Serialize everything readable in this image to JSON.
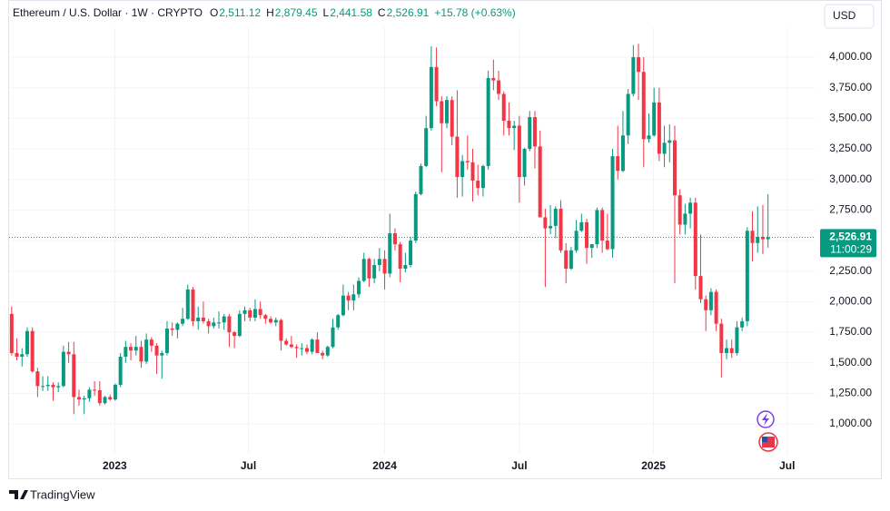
{
  "chart_data": {
    "type": "candlestick",
    "title": "Ethereum / U.S. Dollar · 1W · CRYPTO",
    "ohlc_legend": [
      {
        "key": "O",
        "value": "2,511.12"
      },
      {
        "key": "H",
        "value": "2,879.45"
      },
      {
        "key": "L",
        "value": "2,441.58"
      },
      {
        "key": "C",
        "value": "2,526.91"
      }
    ],
    "change": "+15.78 (+0.63%)",
    "currency": "USD",
    "brand": "TradingView",
    "last_price": {
      "value": 2526.91,
      "label": "2,526.91"
    },
    "countdown": "11:00:29",
    "up_color": "#089981",
    "down_color": "#f23645",
    "grid": true,
    "xlim": [
      -0.5,
      155
    ],
    "xticks": [
      {
        "value": 19.9,
        "label": "2023"
      },
      {
        "value": 45.7,
        "label": "Jul"
      },
      {
        "value": 72,
        "label": "2024"
      },
      {
        "value": 98,
        "label": "Jul"
      },
      {
        "value": 123.9,
        "label": "2025"
      },
      {
        "value": 149.7,
        "label": "Jul"
      }
    ],
    "ylim": [
      555,
      4468
    ],
    "yticks": [
      {
        "value": 1000,
        "label": "1,000.00"
      },
      {
        "value": 1250,
        "label": "1,250.00"
      },
      {
        "value": 1500,
        "label": "1,500.00"
      },
      {
        "value": 1750,
        "label": "1,750.00"
      },
      {
        "value": 2000,
        "label": "2,000.00"
      },
      {
        "value": 2250,
        "label": "2,250.00"
      },
      {
        "value": 2500,
        "label": "2,500.00"
      },
      {
        "value": 2750,
        "label": "2,750.00"
      },
      {
        "value": 3000,
        "label": "3,000.00"
      },
      {
        "value": 3250,
        "label": "3,250.00"
      },
      {
        "value": 3500,
        "label": "3,500.00"
      },
      {
        "value": 3750,
        "label": "3,750.00"
      },
      {
        "value": 4000,
        "label": "4,000.00"
      }
    ],
    "candles": [
      [
        1900,
        1960,
        1560,
        1580
      ],
      [
        1580,
        1700,
        1520,
        1550
      ],
      [
        1550,
        1620,
        1470,
        1570
      ],
      [
        1570,
        1790,
        1550,
        1760
      ],
      [
        1760,
        1790,
        1420,
        1430
      ],
      [
        1430,
        1460,
        1220,
        1310
      ],
      [
        1310,
        1390,
        1270,
        1310
      ],
      [
        1310,
        1390,
        1270,
        1320
      ],
      [
        1320,
        1340,
        1190,
        1300
      ],
      [
        1300,
        1340,
        1260,
        1310
      ],
      [
        1310,
        1640,
        1300,
        1590
      ],
      [
        1590,
        1670,
        1500,
        1570
      ],
      [
        1570,
        1670,
        1080,
        1220
      ],
      [
        1220,
        1280,
        1150,
        1200
      ],
      [
        1200,
        1230,
        1080,
        1210
      ],
      [
        1210,
        1300,
        1180,
        1280
      ],
      [
        1280,
        1350,
        1230,
        1275
      ],
      [
        1275,
        1350,
        1150,
        1170
      ],
      [
        1170,
        1230,
        1160,
        1220
      ],
      [
        1220,
        1240,
        1190,
        1200
      ],
      [
        1200,
        1330,
        1190,
        1320
      ],
      [
        1320,
        1580,
        1300,
        1550
      ],
      [
        1550,
        1680,
        1500,
        1630
      ],
      [
        1630,
        1660,
        1520,
        1600
      ],
      [
        1600,
        1720,
        1560,
        1630
      ],
      [
        1630,
        1680,
        1460,
        1510
      ],
      [
        1510,
        1740,
        1490,
        1690
      ],
      [
        1690,
        1710,
        1590,
        1640
      ],
      [
        1640,
        1660,
        1410,
        1560
      ],
      [
        1560,
        1600,
        1370,
        1580
      ],
      [
        1580,
        1840,
        1560,
        1780
      ],
      [
        1780,
        1830,
        1720,
        1770
      ],
      [
        1770,
        1830,
        1700,
        1820
      ],
      [
        1820,
        1950,
        1800,
        1860
      ],
      [
        1860,
        2140,
        1850,
        2100
      ],
      [
        2100,
        2120,
        1800,
        1840
      ],
      [
        1840,
        1960,
        1770,
        1870
      ],
      [
        1870,
        2000,
        1820,
        1840
      ],
      [
        1840,
        1860,
        1740,
        1800
      ],
      [
        1800,
        1870,
        1780,
        1830
      ],
      [
        1830,
        1920,
        1780,
        1830
      ],
      [
        1830,
        1900,
        1770,
        1880
      ],
      [
        1880,
        1900,
        1630,
        1750
      ],
      [
        1750,
        1760,
        1620,
        1720
      ],
      [
        1720,
        1930,
        1710,
        1900
      ],
      [
        1900,
        1960,
        1840,
        1930
      ],
      [
        1930,
        1950,
        1840,
        1870
      ],
      [
        1870,
        2020,
        1840,
        1940
      ],
      [
        1940,
        2000,
        1860,
        1890
      ],
      [
        1890,
        1900,
        1820,
        1860
      ],
      [
        1860,
        1880,
        1820,
        1830
      ],
      [
        1830,
        1870,
        1800,
        1850
      ],
      [
        1850,
        1860,
        1600,
        1680
      ],
      [
        1680,
        1700,
        1640,
        1650
      ],
      [
        1650,
        1720,
        1620,
        1630
      ],
      [
        1630,
        1650,
        1540,
        1620
      ],
      [
        1620,
        1660,
        1560,
        1620
      ],
      [
        1620,
        1650,
        1570,
        1590
      ],
      [
        1590,
        1700,
        1570,
        1690
      ],
      [
        1690,
        1750,
        1580,
        1580
      ],
      [
        1580,
        1600,
        1530,
        1560
      ],
      [
        1560,
        1640,
        1550,
        1630
      ],
      [
        1630,
        1860,
        1620,
        1790
      ],
      [
        1790,
        1900,
        1770,
        1890
      ],
      [
        1890,
        2140,
        1880,
        2050
      ],
      [
        2050,
        2080,
        1930,
        2010
      ],
      [
        2010,
        2140,
        1930,
        2060
      ],
      [
        2060,
        2200,
        2030,
        2170
      ],
      [
        2170,
        2400,
        2160,
        2350
      ],
      [
        2350,
        2360,
        2120,
        2190
      ],
      [
        2190,
        2350,
        2150,
        2300
      ],
      [
        2300,
        2440,
        2250,
        2350
      ],
      [
        2350,
        2420,
        2100,
        2230
      ],
      [
        2230,
        2720,
        2200,
        2560
      ],
      [
        2560,
        2600,
        2420,
        2470
      ],
      [
        2470,
        2490,
        2160,
        2270
      ],
      [
        2270,
        2400,
        2240,
        2300
      ],
      [
        2300,
        2530,
        2280,
        2500
      ],
      [
        2500,
        2900,
        2480,
        2880
      ],
      [
        2880,
        3130,
        2870,
        3110
      ],
      [
        3110,
        3520,
        3100,
        3420
      ],
      [
        3420,
        4090,
        3400,
        3920
      ],
      [
        3920,
        4080,
        3600,
        3640
      ],
      [
        3640,
        3680,
        3060,
        3460
      ],
      [
        3460,
        3680,
        3420,
        3650
      ],
      [
        3650,
        3680,
        3280,
        3350
      ],
      [
        3350,
        3730,
        2850,
        3020
      ],
      [
        3020,
        3200,
        2860,
        3150
      ],
      [
        3150,
        3360,
        3080,
        3140
      ],
      [
        3140,
        3250,
        2820,
        2990
      ],
      [
        2990,
        3120,
        2870,
        2930
      ],
      [
        2930,
        3120,
        2860,
        3110
      ],
      [
        3110,
        3890,
        3080,
        3830
      ],
      [
        3830,
        3980,
        3730,
        3810
      ],
      [
        3810,
        3890,
        3650,
        3700
      ],
      [
        3700,
        3720,
        3360,
        3480
      ],
      [
        3480,
        3630,
        3360,
        3420
      ],
      [
        3420,
        3480,
        3240,
        3440
      ],
      [
        3440,
        3520,
        2810,
        3020
      ],
      [
        3020,
        3260,
        2950,
        3250
      ],
      [
        3250,
        3560,
        3230,
        3510
      ],
      [
        3510,
        3560,
        3090,
        3270
      ],
      [
        3270,
        3400,
        2690,
        2690
      ],
      [
        2690,
        2760,
        2120,
        2600
      ],
      [
        2600,
        2790,
        2550,
        2620
      ],
      [
        2620,
        2780,
        2520,
        2760
      ],
      [
        2760,
        2830,
        2400,
        2420
      ],
      [
        2420,
        2480,
        2150,
        2270
      ],
      [
        2270,
        2450,
        2260,
        2420
      ],
      [
        2420,
        2670,
        2400,
        2580
      ],
      [
        2580,
        2720,
        2570,
        2650
      ],
      [
        2650,
        2680,
        2310,
        2440
      ],
      [
        2440,
        2470,
        2360,
        2470
      ],
      [
        2470,
        2770,
        2440,
        2750
      ],
      [
        2750,
        2770,
        2400,
        2500
      ],
      [
        2500,
        2720,
        2420,
        2430
      ],
      [
        2430,
        3250,
        2360,
        3190
      ],
      [
        3190,
        3440,
        3000,
        3070
      ],
      [
        3070,
        3560,
        3060,
        3360
      ],
      [
        3360,
        3740,
        3290,
        3700
      ],
      [
        3700,
        4100,
        3680,
        4000
      ],
      [
        4000,
        4110,
        3650,
        3880
      ],
      [
        3880,
        4000,
        3100,
        3330
      ],
      [
        3330,
        3540,
        3300,
        3360
      ],
      [
        3360,
        3750,
        3350,
        3630
      ],
      [
        3630,
        3750,
        3150,
        3210
      ],
      [
        3210,
        3440,
        3100,
        3300
      ],
      [
        3300,
        3450,
        3140,
        3320
      ],
      [
        3320,
        3440,
        2150,
        2870
      ],
      [
        2870,
        2920,
        2550,
        2630
      ],
      [
        2630,
        2800,
        2550,
        2720
      ],
      [
        2720,
        2850,
        2600,
        2810
      ],
      [
        2810,
        2850,
        2100,
        2210
      ],
      [
        2210,
        2550,
        1990,
        2020
      ],
      [
        2020,
        2050,
        1760,
        1930
      ],
      [
        1930,
        2110,
        1890,
        2080
      ],
      [
        2080,
        2100,
        1760,
        1820
      ],
      [
        1820,
        1860,
        1380,
        1580
      ],
      [
        1580,
        1690,
        1530,
        1620
      ],
      [
        1620,
        1690,
        1540,
        1580
      ],
      [
        1580,
        1840,
        1560,
        1790
      ],
      [
        1790,
        1870,
        1760,
        1840
      ],
      [
        1840,
        2610,
        1800,
        2580
      ],
      [
        2580,
        2740,
        2330,
        2480
      ],
      [
        2480,
        2780,
        2400,
        2530
      ],
      [
        2530,
        2790,
        2390,
        2511.13
      ],
      [
        2511.12,
        2879.45,
        2441.58,
        2526.91
      ]
    ]
  }
}
